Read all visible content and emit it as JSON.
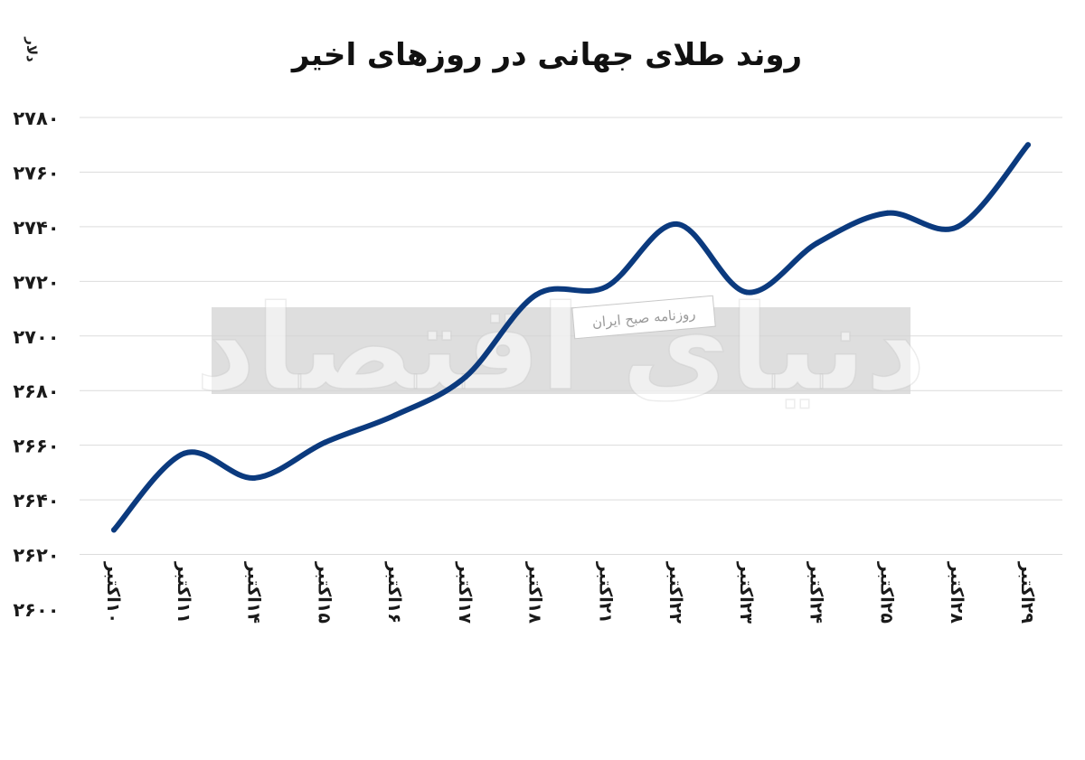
{
  "chart_data": {
    "type": "line",
    "title": "روند طلای جهانی در روزهای اخیر",
    "ylabel": "دلار",
    "xlabel": "",
    "ylim": [
      2600,
      2780
    ],
    "y_ticks": [
      2600,
      2620,
      2640,
      2660,
      2680,
      2700,
      2720,
      2740,
      2760,
      2780
    ],
    "y_tick_labels": [
      "۲۶۰۰",
      "۲۶۲۰",
      "۲۶۴۰",
      "۲۶۶۰",
      "۲۶۸۰",
      "۲۷۰۰",
      "۲۷۲۰",
      "۲۷۴۰",
      "۲۷۶۰",
      "۲۷۸۰"
    ],
    "categories": [
      "۱۰اکتبر",
      "۱۱اکتبر",
      "۱۴اکتبر",
      "۱۵اکتبر",
      "۱۶اکتبر",
      "۱۷اکتبر",
      "۱۸اکتبر",
      "۲۱اکتبر",
      "۲۲اکتبر",
      "۲۳اکتبر",
      "۲۴اکتبر",
      "۲۵اکتبر",
      "۲۸اکتبر",
      "۲۹اکتبر"
    ],
    "series": [
      {
        "values": [
          2629,
          2657,
          2648,
          2661,
          2671,
          2685,
          2715,
          2718,
          2741,
          2716,
          2734,
          2745,
          2740,
          2770
        ]
      }
    ],
    "grid": true,
    "line_color": "#0b3a7e",
    "grid_color": "#dcdcdc"
  },
  "watermark": {
    "brand": "دنیای اقتصاد",
    "tagline": "روزنامه صبح ایران"
  }
}
